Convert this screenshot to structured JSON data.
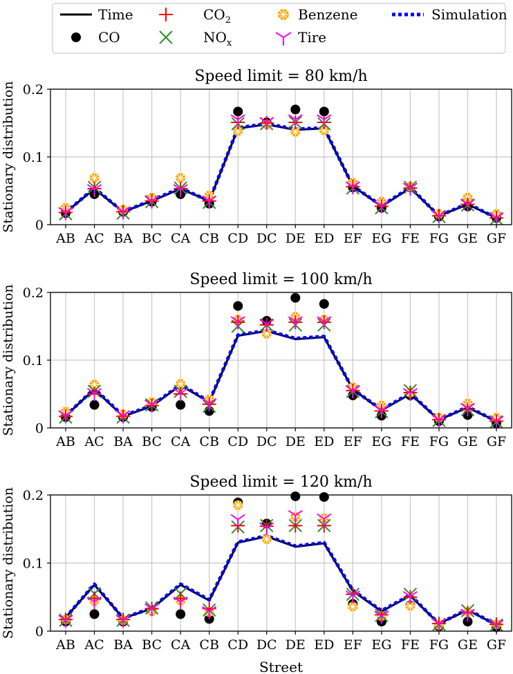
{
  "legend": {
    "time": "Time",
    "co2_main": "CO",
    "co2_sub": "2",
    "benzene": "Benzene",
    "simulation": "Simulation",
    "co": "CO",
    "nox_main": "NO",
    "nox_sub": "x",
    "tire": "Tire"
  },
  "colors": {
    "time": "#000000",
    "co": "#000000",
    "co2": "#ff0000",
    "nox": "#2e8b2e",
    "benzene": "#ffa500",
    "tire": "#ff00ff",
    "simulation": "#0000ff",
    "grid": "#c8c8c8"
  },
  "chart_data": [
    {
      "type": "line",
      "title": "Speed limit = 80 km/h",
      "xlabel": "",
      "ylabel": "Stationary distribution",
      "ylim": [
        0,
        0.2
      ],
      "yticks": [
        0,
        0.1,
        0.2
      ],
      "ytick_labels": [
        "0",
        "0.1",
        "0.2"
      ],
      "grid": true,
      "categories": [
        "AB",
        "AC",
        "BA",
        "BC",
        "CA",
        "CB",
        "CD",
        "DC",
        "DE",
        "ED",
        "EF",
        "EG",
        "FE",
        "FG",
        "GE",
        "GF"
      ],
      "series": [
        {
          "name": "Time",
          "values": [
            0.018,
            0.053,
            0.019,
            0.035,
            0.053,
            0.035,
            0.142,
            0.148,
            0.14,
            0.142,
            0.057,
            0.027,
            0.054,
            0.013,
            0.03,
            0.01
          ]
        },
        {
          "name": "Simulation",
          "values": [
            0.018,
            0.054,
            0.019,
            0.036,
            0.054,
            0.035,
            0.143,
            0.149,
            0.141,
            0.143,
            0.057,
            0.028,
            0.055,
            0.013,
            0.031,
            0.01
          ]
        },
        {
          "name": "CO",
          "values": [
            0.017,
            0.045,
            0.019,
            0.034,
            0.045,
            0.031,
            0.167,
            0.151,
            0.17,
            0.167,
            0.055,
            0.025,
            0.055,
            0.012,
            0.027,
            0.01
          ]
        },
        {
          "name": "CO2",
          "values": [
            0.018,
            0.053,
            0.019,
            0.035,
            0.053,
            0.035,
            0.151,
            0.15,
            0.151,
            0.151,
            0.056,
            0.027,
            0.054,
            0.013,
            0.03,
            0.01
          ]
        },
        {
          "name": "NOx",
          "values": [
            0.016,
            0.055,
            0.017,
            0.034,
            0.054,
            0.033,
            0.149,
            0.149,
            0.151,
            0.149,
            0.054,
            0.025,
            0.055,
            0.012,
            0.029,
            0.009
          ]
        },
        {
          "name": "Benzene",
          "values": [
            0.025,
            0.069,
            0.022,
            0.04,
            0.069,
            0.043,
            0.138,
            0.148,
            0.137,
            0.139,
            0.062,
            0.034,
            0.056,
            0.016,
            0.04,
            0.016
          ]
        },
        {
          "name": "Tire",
          "values": [
            0.018,
            0.052,
            0.019,
            0.035,
            0.052,
            0.035,
            0.155,
            0.151,
            0.155,
            0.155,
            0.056,
            0.028,
            0.054,
            0.013,
            0.03,
            0.01
          ]
        }
      ]
    },
    {
      "type": "line",
      "title": "Speed limit = 100 km/h",
      "xlabel": "",
      "ylabel": "Stationary distribution",
      "ylim": [
        0,
        0.2
      ],
      "yticks": [
        0,
        0.1,
        0.2
      ],
      "ytick_labels": [
        "0",
        "0.1",
        "0.2"
      ],
      "grid": true,
      "categories": [
        "AB",
        "AC",
        "BA",
        "BC",
        "CA",
        "CB",
        "CD",
        "DC",
        "DE",
        "ED",
        "EF",
        "EG",
        "FE",
        "FG",
        "GE",
        "GF"
      ],
      "series": [
        {
          "name": "Time",
          "values": [
            0.018,
            0.057,
            0.017,
            0.032,
            0.063,
            0.038,
            0.136,
            0.143,
            0.131,
            0.134,
            0.057,
            0.026,
            0.05,
            0.012,
            0.03,
            0.01
          ]
        },
        {
          "name": "Simulation",
          "values": [
            0.018,
            0.058,
            0.018,
            0.033,
            0.064,
            0.039,
            0.137,
            0.144,
            0.132,
            0.135,
            0.057,
            0.027,
            0.051,
            0.012,
            0.031,
            0.01
          ]
        },
        {
          "name": "CO",
          "values": [
            0.016,
            0.034,
            0.016,
            0.031,
            0.034,
            0.025,
            0.18,
            0.158,
            0.192,
            0.183,
            0.048,
            0.018,
            0.048,
            0.01,
            0.019,
            0.007
          ]
        },
        {
          "name": "CO2",
          "values": [
            0.017,
            0.05,
            0.017,
            0.033,
            0.05,
            0.035,
            0.156,
            0.152,
            0.156,
            0.156,
            0.055,
            0.025,
            0.052,
            0.012,
            0.027,
            0.01
          ]
        },
        {
          "name": "NOx",
          "values": [
            0.016,
            0.054,
            0.016,
            0.034,
            0.054,
            0.032,
            0.15,
            0.152,
            0.152,
            0.152,
            0.054,
            0.024,
            0.055,
            0.011,
            0.027,
            0.009
          ]
        },
        {
          "name": "Benzene",
          "values": [
            0.024,
            0.064,
            0.02,
            0.038,
            0.065,
            0.042,
            0.16,
            0.139,
            0.164,
            0.16,
            0.06,
            0.033,
            0.052,
            0.015,
            0.036,
            0.015
          ]
        },
        {
          "name": "Tire",
          "values": [
            0.018,
            0.051,
            0.018,
            0.034,
            0.051,
            0.036,
            0.157,
            0.153,
            0.157,
            0.157,
            0.055,
            0.026,
            0.051,
            0.012,
            0.029,
            0.01
          ]
        }
      ]
    },
    {
      "type": "line",
      "title": "Speed limit = 120 km/h",
      "xlabel": "Street",
      "ylabel": "Stationary distribution",
      "ylim": [
        0,
        0.2
      ],
      "yticks": [
        0,
        0.1,
        0.2
      ],
      "ytick_labels": [
        "0",
        "0.1",
        "0.2"
      ],
      "grid": true,
      "categories": [
        "AB",
        "AC",
        "BA",
        "BC",
        "CA",
        "CB",
        "CD",
        "DC",
        "DE",
        "ED",
        "EF",
        "EG",
        "FE",
        "FG",
        "GE",
        "GF"
      ],
      "series": [
        {
          "name": "Time",
          "values": [
            0.02,
            0.068,
            0.019,
            0.033,
            0.068,
            0.045,
            0.13,
            0.139,
            0.124,
            0.129,
            0.059,
            0.029,
            0.052,
            0.011,
            0.031,
            0.009
          ]
        },
        {
          "name": "Simulation",
          "values": [
            0.02,
            0.069,
            0.019,
            0.034,
            0.069,
            0.046,
            0.131,
            0.14,
            0.125,
            0.13,
            0.06,
            0.03,
            0.053,
            0.011,
            0.032,
            0.009
          ]
        },
        {
          "name": "CO",
          "values": [
            0.014,
            0.025,
            0.014,
            0.03,
            0.025,
            0.018,
            0.189,
            0.158,
            0.198,
            0.197,
            0.04,
            0.014,
            0.038,
            0.007,
            0.014,
            0.006
          ]
        },
        {
          "name": "CO2",
          "values": [
            0.017,
            0.048,
            0.017,
            0.033,
            0.048,
            0.033,
            0.155,
            0.154,
            0.155,
            0.155,
            0.054,
            0.024,
            0.05,
            0.011,
            0.027,
            0.01
          ]
        },
        {
          "name": "NOx",
          "values": [
            0.016,
            0.055,
            0.016,
            0.034,
            0.055,
            0.031,
            0.153,
            0.155,
            0.155,
            0.155,
            0.054,
            0.023,
            0.054,
            0.01,
            0.03,
            0.009
          ]
        },
        {
          "name": "Benzene",
          "values": [
            0.017,
            0.044,
            0.016,
            0.029,
            0.045,
            0.028,
            0.185,
            0.135,
            0.168,
            0.166,
            0.036,
            0.022,
            0.037,
            0.009,
            0.028,
            0.01
          ]
        },
        {
          "name": "Tire",
          "values": [
            0.016,
            0.043,
            0.016,
            0.033,
            0.043,
            0.029,
            0.164,
            0.152,
            0.17,
            0.165,
            0.052,
            0.022,
            0.051,
            0.011,
            0.025,
            0.009
          ]
        }
      ]
    }
  ]
}
